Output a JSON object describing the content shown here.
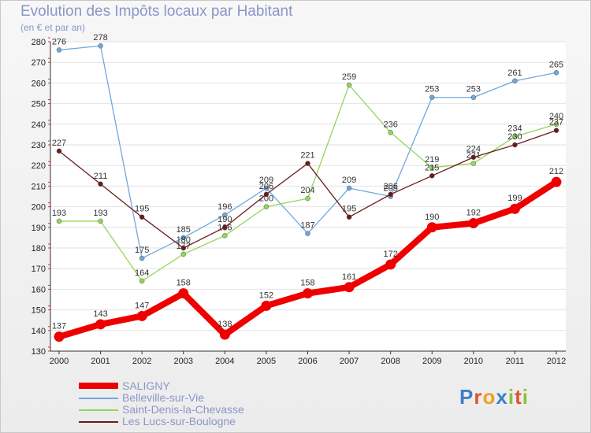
{
  "header": {
    "title": "Evolution des Impôts locaux par Habitant",
    "subtitle": "(en € et par an)"
  },
  "logo": {
    "letters": [
      {
        "ch": "P",
        "color": "#3a7fd0"
      },
      {
        "ch": "r",
        "color": "#e0542a"
      },
      {
        "ch": "o",
        "color": "#f0a020"
      },
      {
        "ch": "x",
        "color": "#3a7fd0"
      },
      {
        "ch": "i",
        "color": "#8bbf3c"
      },
      {
        "ch": "t",
        "color": "#e0542a"
      },
      {
        "ch": "i",
        "color": "#8bbf3c"
      }
    ]
  },
  "chart_data": {
    "type": "line",
    "title": "Evolution des Impôts locaux par Habitant",
    "subtitle": "(en € et par an)",
    "xlabel": "",
    "ylabel": "",
    "x": [
      "2000",
      "2001",
      "2002",
      "2003",
      "2004",
      "2005",
      "2006",
      "2007",
      "2008",
      "2009",
      "2010",
      "2011",
      "2012"
    ],
    "ylim": [
      130,
      280
    ],
    "yticks": [
      130,
      140,
      150,
      160,
      170,
      180,
      190,
      200,
      210,
      220,
      230,
      240,
      250,
      260,
      270,
      280
    ],
    "grid": "horizontal",
    "legend_position": "bottom-left",
    "series": [
      {
        "name": "SALIGNY",
        "color": "#ee0000",
        "values": [
          137,
          143,
          147,
          158,
          138,
          152,
          158,
          161,
          172,
          190,
          192,
          199,
          212
        ]
      },
      {
        "name": "Belleville-sur-Vie",
        "color": "#6fa8dc",
        "values": [
          276,
          278,
          175,
          185,
          196,
          209,
          187,
          209,
          205,
          253,
          253,
          261,
          265
        ]
      },
      {
        "name": "Saint-Denis-la-Chevasse",
        "color": "#93d65a",
        "values": [
          193,
          193,
          164,
          177,
          186,
          200,
          204,
          259,
          236,
          219,
          221,
          234,
          240
        ]
      },
      {
        "name": "Les Lucs-sur-Boulogne",
        "color": "#6b1a1a",
        "values": [
          227,
          211,
          195,
          180,
          190,
          206,
          221,
          195,
          206,
          215,
          224,
          230,
          237
        ]
      }
    ]
  }
}
